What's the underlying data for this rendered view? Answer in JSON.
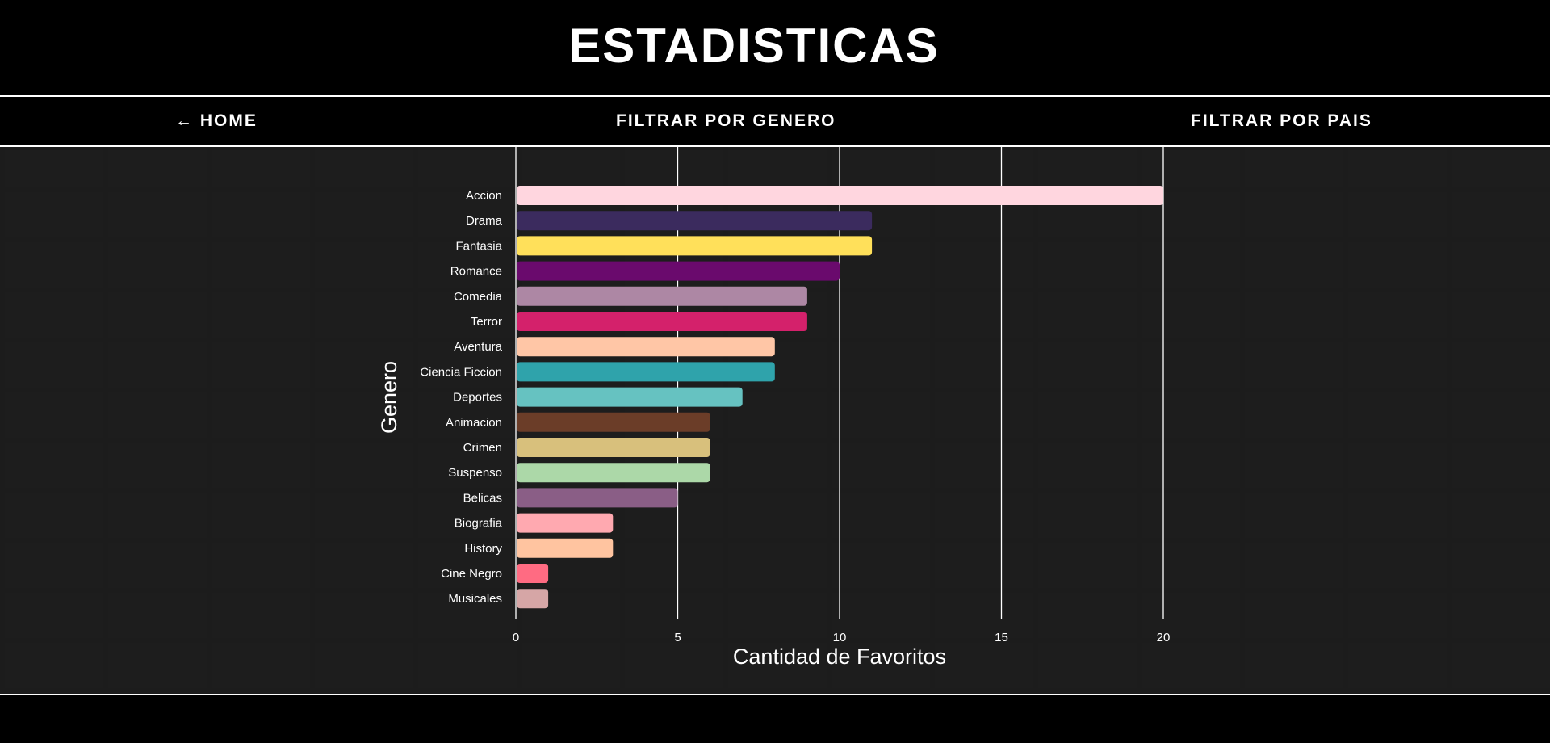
{
  "header": {
    "title": "ESTADISTICAS"
  },
  "nav": {
    "home": "← HOME",
    "filter_genre": "FILTRAR POR GENERO",
    "filter_country": "FILTRAR POR PAIS"
  },
  "colors": {
    "background": "#1b1b1b",
    "nav_background": "#000000",
    "border": "#ffffff",
    "gridline": "#ffffff"
  },
  "chart_data": {
    "type": "bar",
    "orientation": "horizontal",
    "xlabel": "Cantidad de Favoritos",
    "ylabel": "Genero",
    "xlim": [
      0,
      20
    ],
    "xticks": [
      0,
      5,
      10,
      15,
      20
    ],
    "grid": true,
    "categories": [
      "Accion",
      "Drama",
      "Fantasia",
      "Romance",
      "Comedia",
      "Terror",
      "Aventura",
      "Ciencia Ficcion",
      "Deportes",
      "Animacion",
      "Crimen",
      "Suspenso",
      "Belicas",
      "Biografia",
      "History",
      "Cine Negro",
      "Musicales"
    ],
    "values": [
      20,
      11,
      11,
      10,
      9,
      9,
      8,
      8,
      7,
      6,
      6,
      6,
      5,
      3,
      3,
      1,
      1
    ],
    "bar_colors": [
      "#ffd6df",
      "#3b2b5e",
      "#ffe05a",
      "#6a0a6d",
      "#ad87a4",
      "#d4216b",
      "#ffc6a6",
      "#2fa3ab",
      "#66c2c1",
      "#6b3d28",
      "#d8c07c",
      "#acd8a8",
      "#8a5e86",
      "#ffa9b0",
      "#ffc4a0",
      "#ff6b82",
      "#d6a6a6"
    ]
  }
}
